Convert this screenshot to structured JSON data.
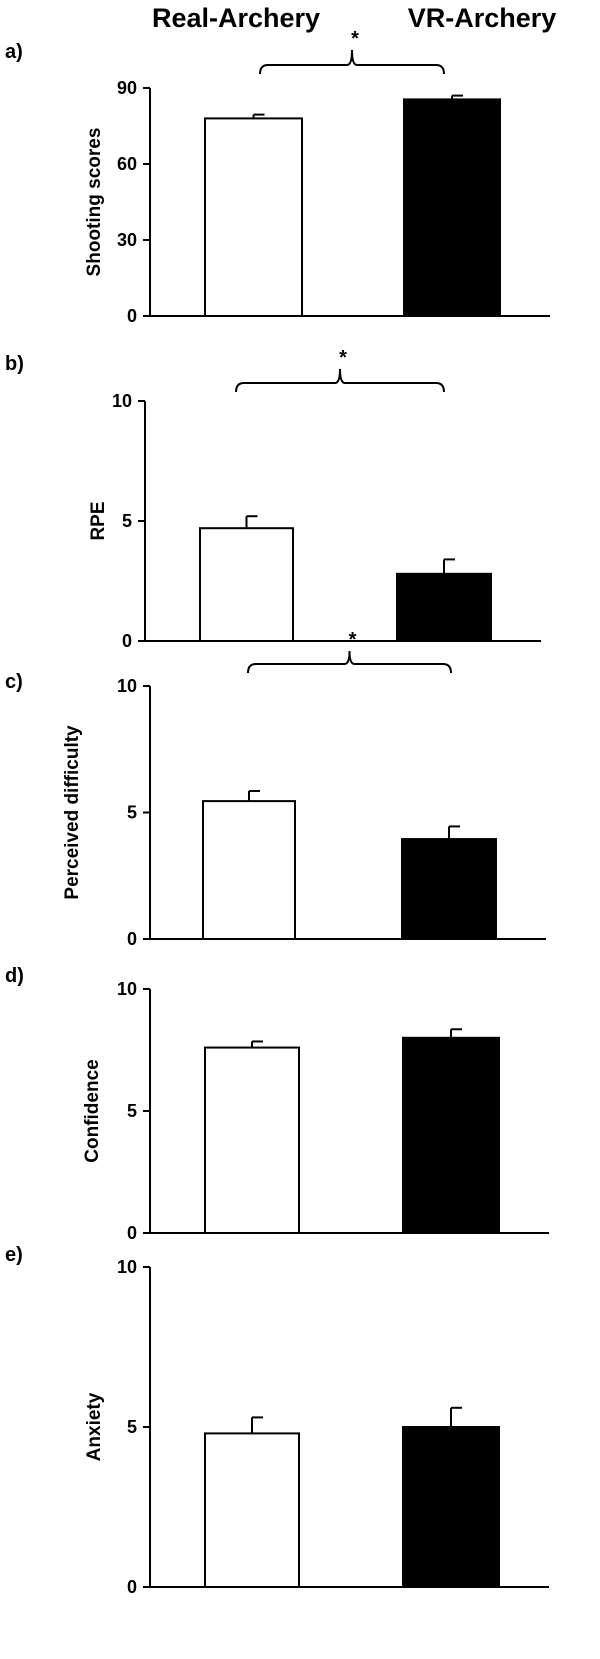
{
  "header": {
    "left": "Real-Archery",
    "right": "VR-Archery"
  },
  "colors": {
    "real": "#ffffff",
    "vr": "#000000",
    "outline": "#000000"
  },
  "chart_data": [
    {
      "type": "bar",
      "panel_label": "a)",
      "ylabel": "Shooting scores",
      "ylim": [
        0,
        90
      ],
      "yticks": [
        0,
        30,
        60,
        90
      ],
      "categories": [
        "Real-Archery",
        "VR-Archery"
      ],
      "values": [
        78,
        85.5
      ],
      "errors": [
        1.5,
        1.5
      ],
      "significance": "*"
    },
    {
      "type": "bar",
      "panel_label": "b)",
      "ylabel": "RPE",
      "ylim": [
        0,
        10
      ],
      "yticks": [
        0,
        5,
        10
      ],
      "categories": [
        "Real-Archery",
        "VR-Archery"
      ],
      "values": [
        4.7,
        2.8
      ],
      "errors": [
        0.5,
        0.6
      ],
      "significance": "*"
    },
    {
      "type": "bar",
      "panel_label": "c)",
      "ylabel": "Perceived difficulty",
      "ylim": [
        0,
        10
      ],
      "yticks": [
        0,
        5,
        10
      ],
      "categories": [
        "Real-Archery",
        "VR-Archery"
      ],
      "values": [
        5.45,
        3.95
      ],
      "errors": [
        0.4,
        0.5
      ],
      "significance": "*"
    },
    {
      "type": "bar",
      "panel_label": "d)",
      "ylabel": "Confidence",
      "ylim": [
        0,
        10
      ],
      "yticks": [
        0,
        5,
        10
      ],
      "categories": [
        "Real-Archery",
        "VR-Archery"
      ],
      "values": [
        7.6,
        8.0
      ],
      "errors": [
        0.25,
        0.35
      ],
      "significance": ""
    },
    {
      "type": "bar",
      "panel_label": "e)",
      "ylabel": "Anxiety",
      "ylim": [
        0,
        10
      ],
      "yticks": [
        0,
        5,
        10
      ],
      "categories": [
        "Real-Archery",
        "VR-Archery"
      ],
      "values": [
        4.8,
        5.0
      ],
      "errors": [
        0.5,
        0.6
      ],
      "significance": ""
    }
  ]
}
